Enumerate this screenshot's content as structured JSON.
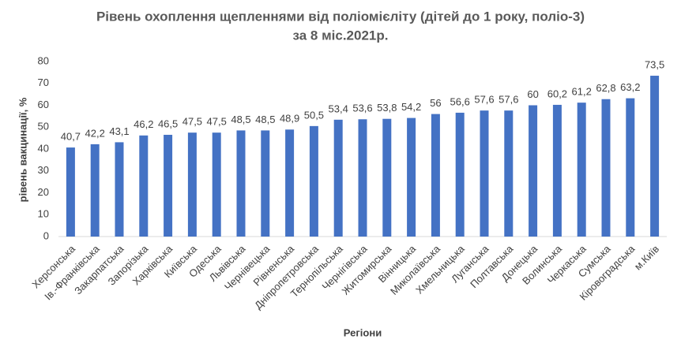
{
  "chart_data": {
    "type": "bar",
    "title": [
      "Рівень охоплення щепленнями від поліомієліту (дітей до 1 року, поліо-3)",
      "за 8 міс.2021р."
    ],
    "x_label": "Регіони",
    "y_label": "рівень вакцинації, %",
    "categories": [
      "Херсонська",
      "Ів.-Франківська",
      "Закарпатська",
      "Запорізька",
      "Харківська",
      "Київська",
      "Одеська",
      "Львівська",
      "Чернівецька",
      "Рівненська",
      "Дніпропетровська",
      "Тернопільська",
      "Чернігівська",
      "Житомирська",
      "Вінницька",
      "Миколаївська",
      "Хмельницька",
      "Луганська",
      "Полтавська",
      "Донецька",
      "Волинська",
      "Черкаська",
      "Сумська",
      "Кіровоградська",
      "м.Київ"
    ],
    "values": [
      40.7,
      42.2,
      43.1,
      46.2,
      46.5,
      47.5,
      47.5,
      48.5,
      48.5,
      48.9,
      50.5,
      53.4,
      53.6,
      53.8,
      54.2,
      56,
      56.6,
      57.6,
      57.6,
      60,
      60.2,
      61.2,
      62.8,
      63.2,
      73.5
    ],
    "value_labels": [
      "40,7",
      "42,2",
      "43,1",
      "46,2",
      "46,5",
      "47,5",
      "47,5",
      "48,5",
      "48,5",
      "48,9",
      "50,5",
      "53,4",
      "53,6",
      "53,8",
      "54,2",
      "56",
      "56,6",
      "57,6",
      "57,6",
      "60",
      "60,2",
      "61,2",
      "62,8",
      "63,2",
      "73,5"
    ],
    "color": "#4472c4",
    "ylim": [
      0,
      80
    ],
    "yticks": [
      0,
      10,
      20,
      30,
      40,
      50,
      60,
      70,
      80
    ],
    "grid": false
  }
}
